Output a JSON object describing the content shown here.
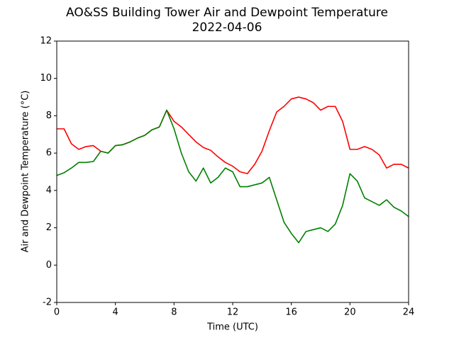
{
  "chart_data": {
    "type": "line",
    "title": "AO&SS Building Tower Air and Dewpoint Temperature",
    "subtitle": "2022-04-06",
    "x_label": "Time (UTC)",
    "y_label": "Air and Dewpoint Temperature (°C)",
    "x": [
      0,
      0.5,
      1,
      1.5,
      2,
      2.5,
      3,
      3.5,
      4,
      4.5,
      5,
      5.5,
      6,
      6.5,
      7,
      7.5,
      8,
      8.5,
      9,
      9.5,
      10,
      10.5,
      11,
      11.5,
      12,
      12.5,
      13,
      13.5,
      14,
      14.5,
      15,
      15.5,
      16,
      16.5,
      17,
      17.5,
      18,
      18.5,
      19,
      19.5,
      20,
      20.5,
      21,
      21.5,
      22,
      22.5,
      23,
      23.5,
      24
    ],
    "series": [
      {
        "color": "#ff0000",
        "values": [
          7.3,
          7.3,
          6.5,
          6.2,
          6.35,
          6.4,
          6.1,
          6.0,
          6.4,
          6.45,
          6.6,
          6.8,
          6.95,
          7.25,
          7.4,
          8.3,
          7.7,
          7.4,
          7.0,
          6.6,
          6.3,
          6.15,
          5.8,
          5.5,
          5.3,
          5.0,
          4.9,
          5.4,
          6.1,
          7.2,
          8.2,
          8.5,
          8.9,
          9.0,
          8.9,
          8.7,
          8.3,
          8.5,
          8.5,
          7.7,
          6.2,
          6.2,
          6.35,
          6.2,
          5.9,
          5.2,
          5.4,
          5.4,
          5.2
        ]
      },
      {
        "color": "#008000",
        "values": [
          4.8,
          4.95,
          5.2,
          5.5,
          5.5,
          5.55,
          6.1,
          6.0,
          6.4,
          6.45,
          6.6,
          6.8,
          6.95,
          7.25,
          7.4,
          8.3,
          7.3,
          6.0,
          5.0,
          4.5,
          5.2,
          4.4,
          4.7,
          5.2,
          5.0,
          4.2,
          4.2,
          4.3,
          4.4,
          4.7,
          3.5,
          2.3,
          1.7,
          1.2,
          1.8,
          1.9,
          2.0,
          1.8,
          2.2,
          3.2,
          4.9,
          4.5,
          3.6,
          3.4,
          3.2,
          3.5,
          3.1,
          2.9,
          2.6
        ]
      }
    ],
    "xlim": [
      0,
      24
    ],
    "xticks": [
      0,
      4,
      8,
      12,
      16,
      20,
      24
    ],
    "ylim": [
      -2,
      12
    ],
    "yticks": [
      -2,
      0,
      2,
      4,
      6,
      8,
      10,
      12
    ]
  }
}
